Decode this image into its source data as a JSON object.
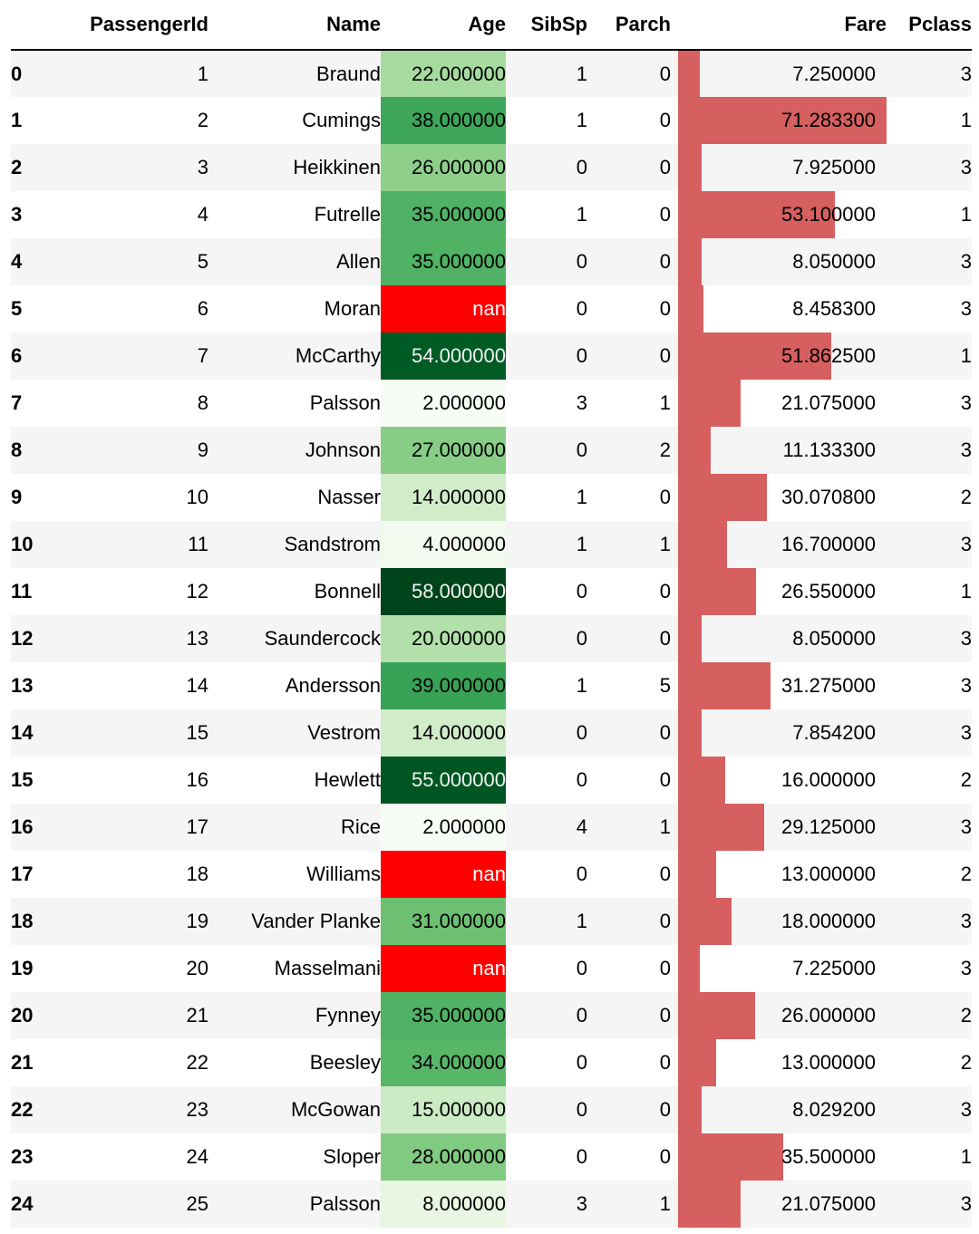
{
  "table": {
    "columns": [
      "",
      "PassengerId",
      "Name",
      "Age",
      "SibSp",
      "Parch",
      "Fare",
      "Pclass"
    ],
    "rows": [
      {
        "index": "0",
        "PassengerId": "1",
        "Name": "Braund",
        "Age": "22.000000",
        "age_value": 22,
        "SibSp": "1",
        "Parch": "0",
        "Fare": "7.250000",
        "fare_value": 7.25,
        "Pclass": "3"
      },
      {
        "index": "1",
        "PassengerId": "2",
        "Name": "Cumings",
        "Age": "38.000000",
        "age_value": 38,
        "SibSp": "1",
        "Parch": "0",
        "Fare": "71.283300",
        "fare_value": 71.2833,
        "Pclass": "1"
      },
      {
        "index": "2",
        "PassengerId": "3",
        "Name": "Heikkinen",
        "Age": "26.000000",
        "age_value": 26,
        "SibSp": "0",
        "Parch": "0",
        "Fare": "7.925000",
        "fare_value": 7.925,
        "Pclass": "3"
      },
      {
        "index": "3",
        "PassengerId": "4",
        "Name": "Futrelle",
        "Age": "35.000000",
        "age_value": 35,
        "SibSp": "1",
        "Parch": "0",
        "Fare": "53.100000",
        "fare_value": 53.1,
        "Pclass": "1"
      },
      {
        "index": "4",
        "PassengerId": "5",
        "Name": "Allen",
        "Age": "35.000000",
        "age_value": 35,
        "SibSp": "0",
        "Parch": "0",
        "Fare": "8.050000",
        "fare_value": 8.05,
        "Pclass": "3"
      },
      {
        "index": "5",
        "PassengerId": "6",
        "Name": "Moran",
        "Age": "nan",
        "age_value": null,
        "SibSp": "0",
        "Parch": "0",
        "Fare": "8.458300",
        "fare_value": 8.4583,
        "Pclass": "3"
      },
      {
        "index": "6",
        "PassengerId": "7",
        "Name": "McCarthy",
        "Age": "54.000000",
        "age_value": 54,
        "SibSp": "0",
        "Parch": "0",
        "Fare": "51.862500",
        "fare_value": 51.8625,
        "Pclass": "1"
      },
      {
        "index": "7",
        "PassengerId": "8",
        "Name": "Palsson",
        "Age": "2.000000",
        "age_value": 2,
        "SibSp": "3",
        "Parch": "1",
        "Fare": "21.075000",
        "fare_value": 21.075,
        "Pclass": "3"
      },
      {
        "index": "8",
        "PassengerId": "9",
        "Name": "Johnson",
        "Age": "27.000000",
        "age_value": 27,
        "SibSp": "0",
        "Parch": "2",
        "Fare": "11.133300",
        "fare_value": 11.1333,
        "Pclass": "3"
      },
      {
        "index": "9",
        "PassengerId": "10",
        "Name": "Nasser",
        "Age": "14.000000",
        "age_value": 14,
        "SibSp": "1",
        "Parch": "0",
        "Fare": "30.070800",
        "fare_value": 30.0708,
        "Pclass": "2"
      },
      {
        "index": "10",
        "PassengerId": "11",
        "Name": "Sandstrom",
        "Age": "4.000000",
        "age_value": 4,
        "SibSp": "1",
        "Parch": "1",
        "Fare": "16.700000",
        "fare_value": 16.7,
        "Pclass": "3"
      },
      {
        "index": "11",
        "PassengerId": "12",
        "Name": "Bonnell",
        "Age": "58.000000",
        "age_value": 58,
        "SibSp": "0",
        "Parch": "0",
        "Fare": "26.550000",
        "fare_value": 26.55,
        "Pclass": "1"
      },
      {
        "index": "12",
        "PassengerId": "13",
        "Name": "Saundercock",
        "Age": "20.000000",
        "age_value": 20,
        "SibSp": "0",
        "Parch": "0",
        "Fare": "8.050000",
        "fare_value": 8.05,
        "Pclass": "3"
      },
      {
        "index": "13",
        "PassengerId": "14",
        "Name": "Andersson",
        "Age": "39.000000",
        "age_value": 39,
        "SibSp": "1",
        "Parch": "5",
        "Fare": "31.275000",
        "fare_value": 31.275,
        "Pclass": "3"
      },
      {
        "index": "14",
        "PassengerId": "15",
        "Name": "Vestrom",
        "Age": "14.000000",
        "age_value": 14,
        "SibSp": "0",
        "Parch": "0",
        "Fare": "7.854200",
        "fare_value": 7.8542,
        "Pclass": "3"
      },
      {
        "index": "15",
        "PassengerId": "16",
        "Name": "Hewlett",
        "Age": "55.000000",
        "age_value": 55,
        "SibSp": "0",
        "Parch": "0",
        "Fare": "16.000000",
        "fare_value": 16.0,
        "Pclass": "2"
      },
      {
        "index": "16",
        "PassengerId": "17",
        "Name": "Rice",
        "Age": "2.000000",
        "age_value": 2,
        "SibSp": "4",
        "Parch": "1",
        "Fare": "29.125000",
        "fare_value": 29.125,
        "Pclass": "3"
      },
      {
        "index": "17",
        "PassengerId": "18",
        "Name": "Williams",
        "Age": "nan",
        "age_value": null,
        "SibSp": "0",
        "Parch": "0",
        "Fare": "13.000000",
        "fare_value": 13.0,
        "Pclass": "2"
      },
      {
        "index": "18",
        "PassengerId": "19",
        "Name": "Vander Planke",
        "Age": "31.000000",
        "age_value": 31,
        "SibSp": "1",
        "Parch": "0",
        "Fare": "18.000000",
        "fare_value": 18.0,
        "Pclass": "3"
      },
      {
        "index": "19",
        "PassengerId": "20",
        "Name": "Masselmani",
        "Age": "nan",
        "age_value": null,
        "SibSp": "0",
        "Parch": "0",
        "Fare": "7.225000",
        "fare_value": 7.225,
        "Pclass": "3"
      },
      {
        "index": "20",
        "PassengerId": "21",
        "Name": "Fynney",
        "Age": "35.000000",
        "age_value": 35,
        "SibSp": "0",
        "Parch": "0",
        "Fare": "26.000000",
        "fare_value": 26.0,
        "Pclass": "2"
      },
      {
        "index": "21",
        "PassengerId": "22",
        "Name": "Beesley",
        "Age": "34.000000",
        "age_value": 34,
        "SibSp": "0",
        "Parch": "0",
        "Fare": "13.000000",
        "fare_value": 13.0,
        "Pclass": "2"
      },
      {
        "index": "22",
        "PassengerId": "23",
        "Name": "McGowan",
        "Age": "15.000000",
        "age_value": 15,
        "SibSp": "0",
        "Parch": "0",
        "Fare": "8.029200",
        "fare_value": 8.0292,
        "Pclass": "3"
      },
      {
        "index": "23",
        "PassengerId": "24",
        "Name": "Sloper",
        "Age": "28.000000",
        "age_value": 28,
        "SibSp": "0",
        "Parch": "0",
        "Fare": "35.500000",
        "fare_value": 35.5,
        "Pclass": "1"
      },
      {
        "index": "24",
        "PassengerId": "25",
        "Name": "Palsson",
        "Age": "8.000000",
        "age_value": 8,
        "SibSp": "3",
        "Parch": "1",
        "Fare": "21.075000",
        "fare_value": 21.075,
        "Pclass": "3"
      }
    ]
  },
  "styling": {
    "age_gradient": "Greens",
    "age_gradient_colors": [
      "#f7fcf5",
      "#e5f5e0",
      "#c7e9c0",
      "#a1d99b",
      "#74c476",
      "#41ab5d",
      "#238b45",
      "#006d2c",
      "#00441b"
    ],
    "age_min": 2,
    "age_max": 58,
    "null_color": "#ff0000",
    "null_text_color": "#ffffff",
    "fare_bar_color": "#d65f5f",
    "fare_bar_max": 71.2833
  }
}
